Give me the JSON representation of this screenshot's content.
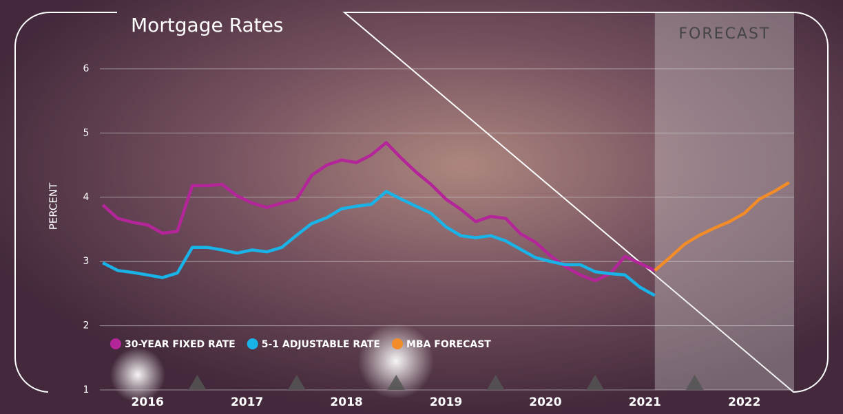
{
  "chart_data": {
    "type": "line",
    "title": "Mortgage Rates",
    "ylabel": "PERCENT",
    "shade_label": "FORECAST",
    "shade": [
      2021.6,
      2023
    ],
    "xlim": [
      2016,
      2023
    ],
    "xticks": [
      {
        "value": 2016.5,
        "label": "2016"
      },
      {
        "value": 2017.5,
        "label": "2017"
      },
      {
        "value": 2018.5,
        "label": "2018"
      },
      {
        "value": 2019.5,
        "label": "2019"
      },
      {
        "value": 2020.5,
        "label": "2020"
      },
      {
        "value": 2021.5,
        "label": "2021"
      },
      {
        "value": 2022.5,
        "label": "2022"
      }
    ],
    "ylim": [
      1,
      6
    ],
    "yticks": [
      1,
      2,
      3,
      4,
      5,
      6
    ],
    "grid": true,
    "x": [
      2016.05,
      2016.2,
      2016.35,
      2016.5,
      2016.65,
      2016.8,
      2016.95,
      2017.1,
      2017.25,
      2017.4,
      2017.55,
      2017.7,
      2017.85,
      2018.0,
      2018.15,
      2018.3,
      2018.45,
      2018.6,
      2018.75,
      2018.9,
      2019.05,
      2019.2,
      2019.35,
      2019.5,
      2019.65,
      2019.8,
      2019.95,
      2020.1,
      2020.25,
      2020.4,
      2020.55,
      2020.7,
      2020.85,
      2021.0,
      2021.15,
      2021.3,
      2021.45,
      2021.6,
      2021.75,
      2021.9,
      2022.05,
      2022.2,
      2022.35,
      2022.5,
      2022.65,
      2022.8,
      2022.95
    ],
    "series": [
      {
        "name": "30-YEAR FIXED RATE",
        "color": "#b5259a",
        "values": [
          3.88,
          3.67,
          3.61,
          3.57,
          3.44,
          3.47,
          4.18,
          4.18,
          4.2,
          4.02,
          3.91,
          3.84,
          3.91,
          3.97,
          4.34,
          4.5,
          4.58,
          4.54,
          4.66,
          4.85,
          4.61,
          4.39,
          4.2,
          3.97,
          3.81,
          3.62,
          3.7,
          3.67,
          3.43,
          3.3,
          3.09,
          2.92,
          2.79,
          2.7,
          2.81,
          3.08,
          2.97,
          2.86,
          null,
          null,
          null,
          null,
          null,
          null,
          null,
          null,
          null
        ]
      },
      {
        "name": "5-1 ADJUSTABLE RATE",
        "color": "#1ab3e8",
        "values": [
          2.98,
          2.86,
          2.83,
          2.79,
          2.75,
          2.82,
          3.22,
          3.22,
          3.18,
          3.13,
          3.18,
          3.15,
          3.22,
          3.41,
          3.59,
          3.68,
          3.82,
          3.86,
          3.89,
          4.09,
          3.97,
          3.86,
          3.75,
          3.54,
          3.4,
          3.37,
          3.4,
          3.32,
          3.19,
          3.06,
          3.0,
          2.95,
          2.95,
          2.84,
          2.81,
          2.79,
          2.6,
          2.47,
          null,
          null,
          null,
          null,
          null,
          null,
          null,
          null,
          null
        ]
      },
      {
        "name": "MBA FORECAST",
        "color": "#f28c28",
        "values": [
          null,
          null,
          null,
          null,
          null,
          null,
          null,
          null,
          null,
          null,
          null,
          null,
          null,
          null,
          null,
          null,
          null,
          null,
          null,
          null,
          null,
          null,
          null,
          null,
          null,
          null,
          null,
          null,
          null,
          null,
          null,
          null,
          null,
          null,
          null,
          null,
          null,
          2.86,
          3.06,
          3.27,
          3.41,
          3.52,
          3.62,
          3.75,
          3.97,
          4.09,
          4.23
        ]
      }
    ]
  }
}
